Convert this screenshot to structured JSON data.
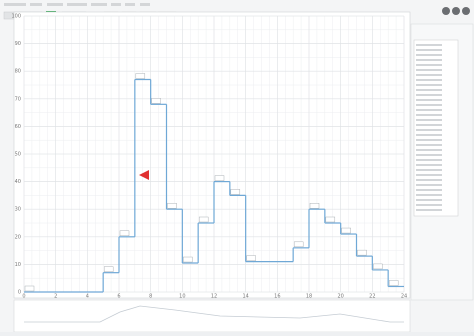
{
  "chart_data": {
    "type": "step",
    "x": [
      0,
      5,
      6,
      7,
      8,
      9,
      10,
      11,
      12,
      13,
      14,
      17,
      18,
      19,
      20,
      21,
      22,
      23
    ],
    "values": [
      0,
      7,
      20,
      77,
      68,
      30,
      10.5,
      25,
      40,
      35,
      11,
      16,
      30,
      25,
      21,
      13,
      8,
      2
    ],
    "color": "#6fa8d6",
    "xlim": [
      0,
      24
    ],
    "xticks": [
      0,
      2,
      4,
      6,
      8,
      10,
      12,
      14,
      16,
      18,
      20,
      22,
      24
    ],
    "ylim": [
      0,
      100
    ],
    "yticks": [
      0,
      10,
      20,
      30,
      40,
      50,
      60,
      70,
      80,
      90,
      100
    ],
    "grid": true
  }
}
